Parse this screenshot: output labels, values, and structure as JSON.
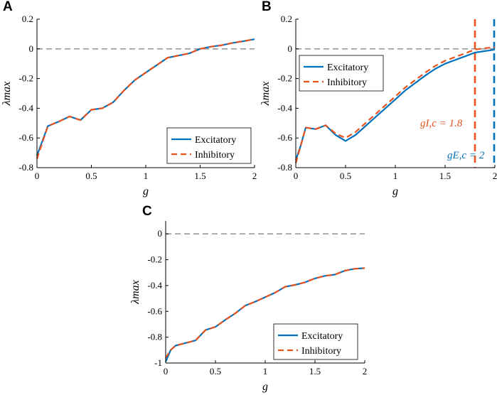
{
  "colors": {
    "excitatory": "#0072BD",
    "inhibitory": "#E8521C",
    "zero_line": "#999999",
    "axis": "#000000"
  },
  "chart_data": [
    {
      "type": "line",
      "panel_label": "A",
      "xlabel": "g",
      "ylabel": "λmax",
      "xlim": [
        0,
        2
      ],
      "ylim": [
        -0.8,
        0.2
      ],
      "x_ticks": [
        0,
        0.5,
        1,
        1.5,
        2
      ],
      "x_tick_labels": [
        "0",
        "0.5",
        "1",
        "1.5",
        "2"
      ],
      "y_ticks": [
        0.2,
        0,
        -0.2,
        -0.4,
        -0.6,
        -0.8
      ],
      "y_tick_labels": [
        "0.2",
        "0",
        "-0.2",
        "-0.4",
        "-0.6",
        "-0.8"
      ],
      "zero_line": 0,
      "legend_position": "bottom-right",
      "series": [
        {
          "name": "Excitatory",
          "style": "solid",
          "x": [
            0,
            0.1,
            0.2,
            0.3,
            0.4,
            0.5,
            0.6,
            0.7,
            0.8,
            0.9,
            1.0,
            1.1,
            1.2,
            1.3,
            1.4,
            1.5,
            1.6,
            1.7,
            1.8,
            1.9,
            2.0
          ],
          "y": [
            -0.72,
            -0.52,
            -0.49,
            -0.455,
            -0.48,
            -0.41,
            -0.4,
            -0.36,
            -0.28,
            -0.21,
            -0.16,
            -0.11,
            -0.06,
            -0.045,
            -0.03,
            0.0,
            0.015,
            0.025,
            0.04,
            0.052,
            0.065
          ]
        },
        {
          "name": "Inhibitory",
          "style": "dashed",
          "x": [
            0,
            0.1,
            0.2,
            0.3,
            0.4,
            0.5,
            0.6,
            0.7,
            0.8,
            0.9,
            1.0,
            1.1,
            1.2,
            1.3,
            1.4,
            1.5,
            1.6,
            1.7,
            1.8,
            1.9,
            2.0
          ],
          "y": [
            -0.74,
            -0.52,
            -0.49,
            -0.455,
            -0.48,
            -0.41,
            -0.4,
            -0.36,
            -0.28,
            -0.21,
            -0.16,
            -0.11,
            -0.06,
            -0.045,
            -0.03,
            0.0,
            0.015,
            0.025,
            0.04,
            0.052,
            0.065
          ]
        }
      ],
      "annotations": []
    },
    {
      "type": "line",
      "panel_label": "B",
      "xlabel": "g",
      "ylabel": "λmax",
      "xlim": [
        0,
        2
      ],
      "ylim": [
        -0.8,
        0.2
      ],
      "x_ticks": [
        0,
        0.5,
        1,
        1.5,
        2
      ],
      "x_tick_labels": [
        "0",
        "0.5",
        "1",
        "1.5",
        "2"
      ],
      "y_ticks": [
        0.2,
        0,
        -0.2,
        -0.4,
        -0.6,
        -0.8
      ],
      "y_tick_labels": [
        "0.2",
        "0",
        "-0.2",
        "-0.4",
        "-0.6",
        "-0.8"
      ],
      "zero_line": 0,
      "legend_position": "top-left",
      "series": [
        {
          "name": "Excitatory",
          "style": "solid",
          "x": [
            0,
            0.05,
            0.1,
            0.2,
            0.3,
            0.4,
            0.5,
            0.6,
            0.7,
            0.8,
            0.9,
            1.0,
            1.1,
            1.2,
            1.3,
            1.4,
            1.5,
            1.6,
            1.7,
            1.8,
            1.9,
            2.0
          ],
          "y": [
            -0.75,
            -0.65,
            -0.53,
            -0.54,
            -0.515,
            -0.58,
            -0.62,
            -0.58,
            -0.52,
            -0.46,
            -0.4,
            -0.34,
            -0.28,
            -0.23,
            -0.18,
            -0.135,
            -0.1,
            -0.075,
            -0.05,
            -0.025,
            -0.015,
            -0.005
          ]
        },
        {
          "name": "Inhibitory",
          "style": "dashed",
          "x": [
            0,
            0.05,
            0.1,
            0.2,
            0.3,
            0.4,
            0.5,
            0.6,
            0.7,
            0.8,
            0.9,
            1.0,
            1.1,
            1.2,
            1.3,
            1.4,
            1.5,
            1.6,
            1.7,
            1.8,
            1.9,
            2.0
          ],
          "y": [
            -0.77,
            -0.65,
            -0.53,
            -0.54,
            -0.515,
            -0.57,
            -0.6,
            -0.56,
            -0.5,
            -0.44,
            -0.38,
            -0.32,
            -0.26,
            -0.21,
            -0.16,
            -0.115,
            -0.08,
            -0.055,
            -0.03,
            -0.005,
            0.005,
            0.01
          ]
        }
      ],
      "vlines": [
        {
          "x": 1.8,
          "series": "inhibitory",
          "label": "gI,c = 1.8"
        },
        {
          "x": 2.0,
          "series": "excitatory",
          "label": "gE,c = 2"
        }
      ]
    },
    {
      "type": "line",
      "panel_label": "C",
      "xlabel": "g",
      "ylabel": "λmax",
      "xlim": [
        0,
        2
      ],
      "ylim": [
        -1,
        0.1
      ],
      "x_ticks": [
        0,
        0.5,
        1,
        1.5,
        2
      ],
      "x_tick_labels": [
        "0",
        "0.5",
        "1",
        "1.5",
        "2"
      ],
      "y_ticks": [
        0,
        -0.2,
        -0.4,
        -0.6,
        -0.8,
        -1
      ],
      "y_tick_labels": [
        "0",
        "-0.2",
        "-0.4",
        "-0.6",
        "-0.8",
        "-1"
      ],
      "zero_line": 0,
      "legend_position": "bottom-right",
      "series": [
        {
          "name": "Excitatory",
          "style": "solid",
          "x": [
            0,
            0.05,
            0.1,
            0.2,
            0.3,
            0.4,
            0.5,
            0.6,
            0.7,
            0.8,
            0.9,
            1.0,
            1.1,
            1.2,
            1.3,
            1.4,
            1.5,
            1.6,
            1.7,
            1.8,
            1.9,
            2.0
          ],
          "y": [
            -0.99,
            -0.9,
            -0.865,
            -0.845,
            -0.825,
            -0.745,
            -0.72,
            -0.665,
            -0.615,
            -0.555,
            -0.525,
            -0.49,
            -0.455,
            -0.41,
            -0.395,
            -0.375,
            -0.345,
            -0.325,
            -0.315,
            -0.285,
            -0.27,
            -0.265
          ]
        },
        {
          "name": "Inhibitory",
          "style": "dashed",
          "x": [
            0,
            0.05,
            0.1,
            0.2,
            0.3,
            0.4,
            0.5,
            0.6,
            0.7,
            0.8,
            0.9,
            1.0,
            1.1,
            1.2,
            1.3,
            1.4,
            1.5,
            1.6,
            1.7,
            1.8,
            1.9,
            2.0
          ],
          "y": [
            -0.96,
            -0.9,
            -0.865,
            -0.845,
            -0.825,
            -0.745,
            -0.72,
            -0.665,
            -0.615,
            -0.555,
            -0.525,
            -0.49,
            -0.455,
            -0.41,
            -0.395,
            -0.375,
            -0.345,
            -0.325,
            -0.315,
            -0.285,
            -0.27,
            -0.265
          ]
        }
      ],
      "annotations": []
    }
  ]
}
